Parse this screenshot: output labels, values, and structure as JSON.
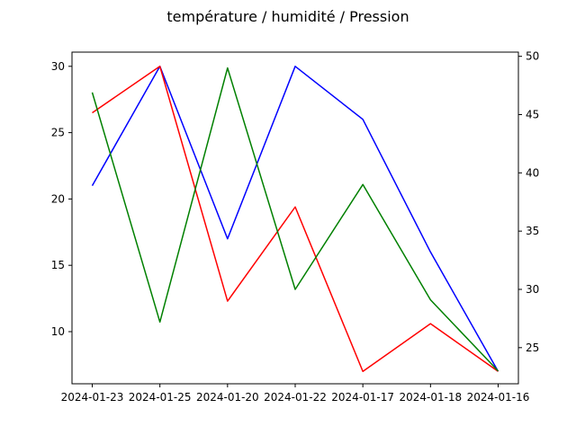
{
  "chart_data": {
    "type": "line",
    "title": "température / humidité / Pression",
    "categories": [
      "2024-01-23",
      "2024-01-25",
      "2024-01-20",
      "2024-01-22",
      "2024-01-17",
      "2024-01-18",
      "2024-01-16"
    ],
    "left_axis": {
      "ylim": [
        6.07,
        31.07
      ],
      "ticks": [
        10,
        15,
        20,
        25,
        30
      ]
    },
    "right_axis": {
      "ylim": [
        21.9,
        50.36
      ],
      "ticks": [
        25,
        30,
        35,
        40,
        45,
        50
      ]
    },
    "grid": false,
    "series": [
      {
        "color": "#0000ff",
        "axis": "left",
        "values": [
          21,
          30,
          17,
          30,
          26,
          16,
          7
        ]
      },
      {
        "color": "#ff0000",
        "axis": "left",
        "values": [
          26.5,
          30,
          12.3,
          19.4,
          7,
          10.6,
          7
        ]
      },
      {
        "color": "#008000",
        "axis": "right",
        "values": [
          46.9,
          27.2,
          49,
          30,
          39,
          29.1,
          23
        ]
      }
    ]
  }
}
